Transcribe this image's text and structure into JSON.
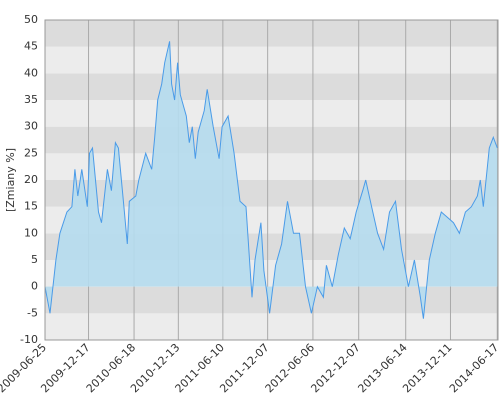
{
  "chart_data": {
    "type": "area",
    "y_label": "[Zmiany %]",
    "x": [
      "2009-06-25",
      "2009-07-15",
      "2009-08-08",
      "2009-08-24",
      "2009-09-21",
      "2009-10-11",
      "2009-10-23",
      "2009-11-04",
      "2009-11-20",
      "2009-12-12",
      "2009-12-21",
      "2010-01-02",
      "2010-01-26",
      "2010-02-07",
      "2010-03-03",
      "2010-03-19",
      "2010-04-04",
      "2010-04-16",
      "2010-05-10",
      "2010-05-22",
      "2010-05-30",
      "2010-06-25",
      "2010-07-07",
      "2010-08-04",
      "2010-08-28",
      "2010-09-09",
      "2010-09-21",
      "2010-10-07",
      "2010-10-19",
      "2010-11-08",
      "2010-11-16",
      "2010-11-28",
      "2010-12-10",
      "2010-12-21",
      "2011-01-14",
      "2011-01-26",
      "2011-02-07",
      "2011-02-19",
      "2011-03-03",
      "2011-03-27",
      "2011-04-08",
      "2011-05-02",
      "2011-05-26",
      "2011-06-07",
      "2011-07-01",
      "2011-07-25",
      "2011-08-18",
      "2011-09-11",
      "2011-10-05",
      "2011-10-17",
      "2011-11-10",
      "2011-11-22",
      "2011-12-15",
      "2012-01-08",
      "2012-02-01",
      "2012-02-25",
      "2012-03-20",
      "2012-04-13",
      "2012-05-07",
      "2012-05-31",
      "2012-06-24",
      "2012-07-18",
      "2012-07-30",
      "2012-08-23",
      "2012-09-16",
      "2012-10-10",
      "2012-11-03",
      "2012-11-27",
      "2012-12-23",
      "2013-01-04",
      "2013-01-28",
      "2013-02-21",
      "2013-03-17",
      "2013-04-10",
      "2013-05-04",
      "2013-05-28",
      "2013-06-25",
      "2013-07-19",
      "2013-08-12",
      "2013-08-24",
      "2013-09-17",
      "2013-10-11",
      "2013-11-04",
      "2013-11-28",
      "2013-12-23",
      "2014-01-16",
      "2014-02-09",
      "2014-03-05",
      "2014-03-29",
      "2014-04-10",
      "2014-04-22",
      "2014-05-16",
      "2014-06-01",
      "2014-06-17"
    ],
    "series": [
      {
        "color": "#4a9be8",
        "fill": "#b5dbee",
        "values": [
          0,
          -5,
          5,
          10,
          14,
          15,
          22,
          17,
          22,
          15,
          25,
          26,
          14,
          12,
          22,
          18,
          27,
          26,
          14,
          8,
          16,
          17,
          20,
          25,
          22,
          28,
          35,
          38,
          42,
          46,
          38,
          35,
          42,
          36,
          32,
          27,
          30,
          24,
          29,
          33,
          37,
          30,
          24,
          30,
          32,
          25,
          16,
          15,
          -2,
          5,
          12,
          3,
          -5,
          4,
          8,
          16,
          10,
          10,
          0,
          -5,
          0,
          -2,
          4,
          0,
          6,
          11,
          9,
          14,
          18,
          20,
          15,
          10,
          7,
          14,
          16,
          7,
          0,
          5,
          -2,
          -6,
          5,
          10,
          14,
          13,
          12,
          10,
          14,
          15,
          17,
          20,
          15,
          26,
          28,
          26
        ]
      }
    ],
    "xlim": [
      "2009-06-25",
      "2014-06-20"
    ],
    "xticks": [
      "2009-06-25",
      "2009-12-17",
      "2010-06-18",
      "2010-12-13",
      "2011-06-10",
      "2011-12-07",
      "2012-06-06",
      "2012-12-07",
      "2013-06-14",
      "2013-12-11",
      "2014-06-17"
    ],
    "ylim": [
      -10,
      50
    ],
    "yticks": [
      -10,
      -5,
      0,
      5,
      10,
      15,
      20,
      25,
      30,
      35,
      40,
      45,
      50
    ],
    "grid": true,
    "band_colors": [
      "#dcdcdc",
      "#ececec"
    ]
  }
}
